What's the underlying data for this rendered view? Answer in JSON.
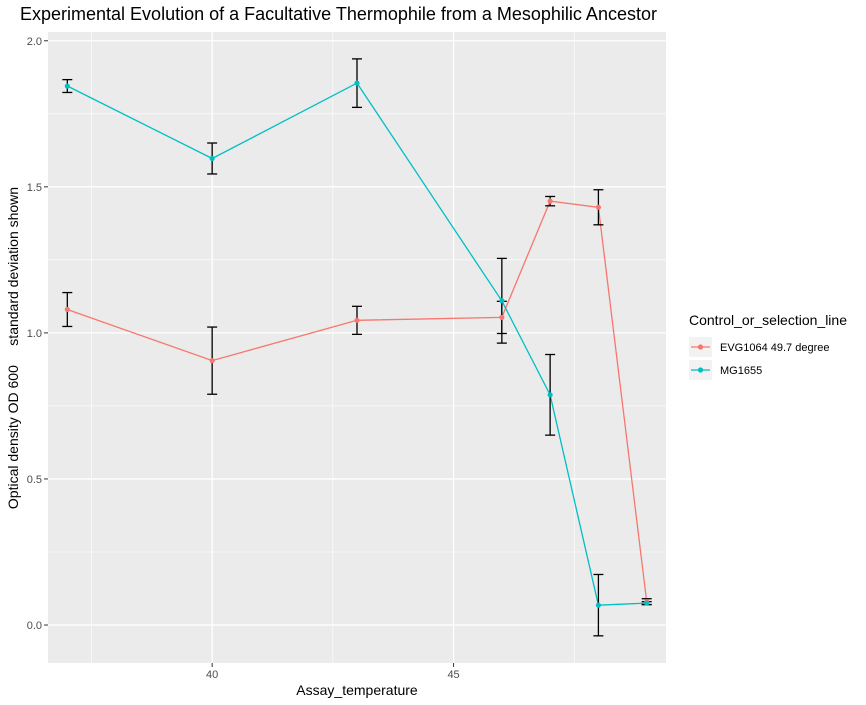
{
  "chart_data": {
    "type": "line",
    "title": "Experimental Evolution of a Facultative Thermophile from a Mesophilic Ancestor",
    "xlabel": "Assay_temperature",
    "ylabel": "Optical density OD 600     standard deviation shown",
    "xlim": [
      36.6,
      49.4
    ],
    "ylim": [
      -0.13,
      2.03
    ],
    "x_ticks": [
      40,
      45
    ],
    "x_tick_labels": [
      "40",
      "45"
    ],
    "y_ticks": [
      0.0,
      0.5,
      1.0,
      1.5,
      2.0
    ],
    "y_tick_labels": [
      "0.0",
      "0.5",
      "1.0",
      "1.5",
      "2.0"
    ],
    "grid": true,
    "legend_title": "Control_or_selection_line",
    "legend_position": "right",
    "series": [
      {
        "name": "EVG1064 49.7 degree",
        "color": "#F8766D",
        "x": [
          37,
          40,
          43,
          46,
          47,
          48,
          49
        ],
        "y": [
          1.08,
          0.905,
          1.043,
          1.053,
          1.451,
          1.43,
          0.08
        ],
        "err": [
          0.058,
          0.115,
          0.048,
          0.055,
          0.016,
          0.06,
          0.01
        ]
      },
      {
        "name": "MG1655",
        "color": "#00BFC4",
        "x": [
          37,
          40,
          43,
          46,
          47,
          48,
          49
        ],
        "y": [
          1.845,
          1.597,
          1.855,
          1.11,
          0.788,
          0.068,
          0.075
        ],
        "err": [
          0.022,
          0.053,
          0.083,
          0.145,
          0.138,
          0.105,
          0.005
        ]
      }
    ]
  }
}
